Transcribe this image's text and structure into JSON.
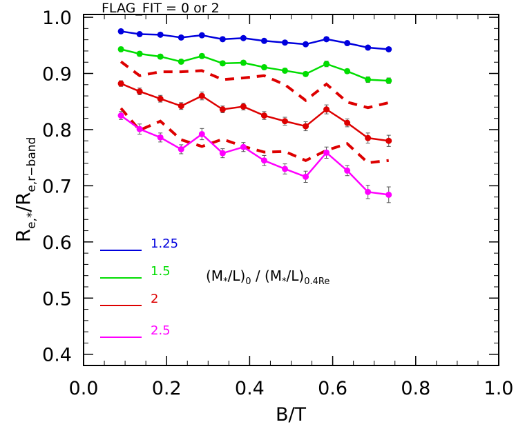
{
  "chart_data": {
    "type": "line",
    "title": "FLAG_FIT = 0 or 2",
    "xlabel": "B/T",
    "ylabel": {
      "base": "R",
      "sub1": "e,*",
      "mid": "/R",
      "sub2": "e,r−band"
    },
    "xlim": [
      0.0,
      1.0
    ],
    "ylim": [
      0.38,
      1.005
    ],
    "xticks": [
      "0.0",
      "0.2",
      "0.4",
      "0.6",
      "0.8",
      "1.0"
    ],
    "xtick_values": [
      0.0,
      0.2,
      0.4,
      0.6,
      0.8,
      1.0
    ],
    "yticks": [
      "0.4",
      "0.5",
      "0.6",
      "0.7",
      "0.8",
      "0.9",
      "1.0"
    ],
    "ytick_values": [
      0.4,
      0.5,
      0.6,
      0.7,
      0.8,
      0.9,
      1.0
    ],
    "grid": false,
    "legend_position": "bottom-left",
    "legend_title": {
      "a": "(M",
      "sub_a": "*",
      "b": "/L)",
      "sub_b": "0",
      "c": " / (M",
      "sub_c": "*",
      "d": "/L)",
      "sub_d": "0.4Re"
    },
    "x": [
      0.09,
      0.135,
      0.185,
      0.235,
      0.285,
      0.335,
      0.385,
      0.435,
      0.485,
      0.535,
      0.585,
      0.635,
      0.685,
      0.735
    ],
    "series": [
      {
        "name": "1.25",
        "color": "#0000dd",
        "values": [
          0.975,
          0.97,
          0.969,
          0.964,
          0.968,
          0.961,
          0.963,
          0.958,
          0.955,
          0.952,
          0.961,
          0.954,
          0.946,
          0.943
        ],
        "errors": [
          0.002,
          0.002,
          0.002,
          0.002,
          0.002,
          0.002,
          0.002,
          0.002,
          0.002,
          0.002,
          0.002,
          0.002,
          0.002,
          0.002
        ]
      },
      {
        "name": "1.5",
        "color": "#00dd00",
        "values": [
          0.943,
          0.935,
          0.93,
          0.921,
          0.931,
          0.918,
          0.919,
          0.911,
          0.905,
          0.899,
          0.917,
          0.904,
          0.889,
          0.887
        ],
        "errors": [
          0.004,
          0.004,
          0.004,
          0.004,
          0.004,
          0.004,
          0.004,
          0.004,
          0.004,
          0.004,
          0.005,
          0.004,
          0.005,
          0.005
        ]
      },
      {
        "name": "2",
        "color": "#dd0000",
        "values": [
          0.882,
          0.868,
          0.855,
          0.842,
          0.86,
          0.836,
          0.841,
          0.825,
          0.815,
          0.806,
          0.836,
          0.812,
          0.785,
          0.78
        ],
        "errors": [
          0.005,
          0.006,
          0.006,
          0.006,
          0.007,
          0.006,
          0.006,
          0.007,
          0.007,
          0.008,
          0.008,
          0.007,
          0.009,
          0.01
        ]
      },
      {
        "name": "2.5",
        "color": "#ff00ff",
        "values": [
          0.825,
          0.801,
          0.786,
          0.765,
          0.792,
          0.758,
          0.769,
          0.745,
          0.73,
          0.716,
          0.759,
          0.727,
          0.689,
          0.684
        ],
        "errors": [
          0.007,
          0.009,
          0.008,
          0.008,
          0.01,
          0.008,
          0.008,
          0.009,
          0.009,
          0.01,
          0.01,
          0.009,
          0.012,
          0.014
        ]
      }
    ],
    "dashed_series": [
      {
        "color": "#dd0000",
        "style": "dashed",
        "values": [
          0.921,
          0.896,
          0.903,
          0.903,
          0.905,
          0.889,
          0.892,
          0.896,
          0.88,
          0.852,
          0.881,
          0.849,
          0.839,
          0.848
        ]
      },
      {
        "color": "#dd0000",
        "style": "dashed",
        "values": [
          0.838,
          0.799,
          0.815,
          0.782,
          0.77,
          0.783,
          0.77,
          0.76,
          0.761,
          0.745,
          0.763,
          0.775,
          0.741,
          0.745
        ]
      }
    ]
  }
}
